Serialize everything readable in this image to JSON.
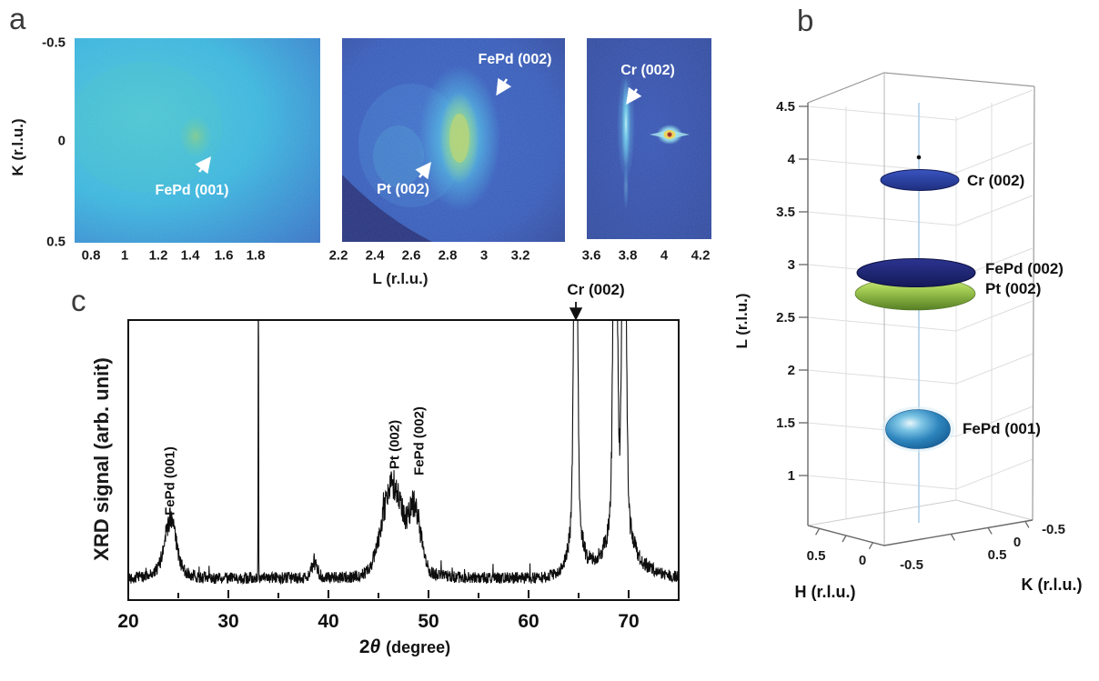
{
  "panel_a": {
    "label": "a",
    "y_axis": {
      "label": "K (r.l.u.)",
      "ticks": [
        "-0.5",
        "0",
        "0.5"
      ]
    },
    "x_axis": {
      "label": "L (r.l.u.)"
    },
    "maps": [
      {
        "x_ticks": [
          "0.8",
          "1",
          "1.2",
          "1.4",
          "1.6",
          "1.8"
        ],
        "annotations": [
          "FePd (001)"
        ]
      },
      {
        "x_ticks": [
          "2.2",
          "2.4",
          "2.6",
          "2.8",
          "3",
          "3.2"
        ],
        "annotations": [
          "FePd (002)",
          "Pt (002)"
        ]
      },
      {
        "x_ticks": [
          "3.6",
          "3.8",
          "4",
          "4.2"
        ],
        "annotations": [
          "Cr (002)"
        ]
      }
    ]
  },
  "panel_b": {
    "label": "b",
    "z_axis": {
      "label": "L (r.l.u.)",
      "ticks": [
        "4.5",
        "4",
        "3.5",
        "3",
        "2.5",
        "2",
        "1.5",
        "1"
      ]
    },
    "h_axis": {
      "label": "H (r.l.u.)",
      "ticks": [
        "0.5",
        "0",
        "-0.5"
      ]
    },
    "k_axis": {
      "label": "K (r.l.u.)",
      "ticks": [
        "0.5",
        "0",
        "-0.5"
      ]
    },
    "features": [
      {
        "label": "Cr (002)",
        "L": 3.8
      },
      {
        "label": "FePd (002)",
        "L": 3.0
      },
      {
        "label": "Pt (002)",
        "L": 2.8
      },
      {
        "label": "FePd (001)",
        "L": 1.5
      }
    ]
  },
  "panel_c": {
    "label": "c",
    "y_axis": {
      "label": "XRD signal (arb. unit)"
    },
    "x_axis": {
      "prefix": "2",
      "theta": "θ",
      "degree": "(degree)"
    }
  },
  "colors": {
    "map_navy": "#1d2a7e",
    "map_cyan": "#2fb2dc",
    "map_blue": "#2b52b4",
    "annotation_white": "#ffffff",
    "curve_black": "#0d0d0d",
    "disk_royal": "#2c3fa5",
    "disk_navy": "#1b2170",
    "disk_green": "#a6cf55",
    "disk_blue": "#2e85bd",
    "hot_spot_red": "#a82818"
  },
  "chart_data": [
    {
      "type": "heatmap",
      "title": "Reciprocal space maps (panel a)",
      "xlabel": "L (r.l.u.)",
      "ylabel": "K (r.l.u.)",
      "ylim": [
        -0.5,
        0.5
      ],
      "y_ticks": [
        -0.5,
        0,
        0.5
      ],
      "maps": [
        {
          "x_range": [
            0.7,
            2.2
          ],
          "x_ticks": [
            0.8,
            1,
            1.2,
            1.4,
            1.6,
            1.8
          ],
          "features": [
            {
              "label": "FePd (001)",
              "L": 1.45,
              "K": 0.0,
              "shape": "broad diffuse cyan ellipse with faint warm core"
            }
          ]
        },
        {
          "x_range": [
            2.2,
            3.3
          ],
          "x_ticks": [
            2.2,
            2.4,
            2.6,
            2.8,
            3,
            3.2
          ],
          "features": [
            {
              "label": "FePd (002)",
              "L": 2.86,
              "K": 0.0,
              "shape": "vertically elongated bright blob with yellow-green core"
            },
            {
              "label": "Pt (002)",
              "L": 2.5,
              "K": 0.0,
              "shape": "faint diffuse glow"
            }
          ]
        },
        {
          "x_range": [
            3.55,
            4.25
          ],
          "x_ticks": [
            3.6,
            3.8,
            4,
            4.2
          ],
          "features": [
            {
              "label": "Cr (002)",
              "L": 3.77,
              "K": 0.0,
              "shape": "narrow vertical cyan streak"
            },
            {
              "label": "",
              "L": 4.0,
              "K": 0.0,
              "shape": "sharp intense substrate spot with red center"
            }
          ]
        }
      ]
    },
    {
      "type": "scatter",
      "subtype": "3d-intensity-isosurfaces",
      "zlabel": "L (r.l.u.)",
      "xlabel": "H (r.l.u.)",
      "ylabel": "K (r.l.u.)",
      "zlim": [
        0.5,
        4.5
      ],
      "z_ticks": [
        4.5,
        4,
        3.5,
        3,
        2.5,
        2,
        1.5,
        1
      ],
      "h_ticks": [
        0.5,
        0,
        -0.5
      ],
      "k_ticks": [
        0.5,
        0,
        -0.5
      ],
      "features": [
        {
          "label": "Cr (002)",
          "H": 0,
          "K": 0,
          "L": 3.8,
          "shape": "thin flat royal-blue disk"
        },
        {
          "label": "",
          "H": 0,
          "K": 0,
          "L": 4.05,
          "shape": "small black dot"
        },
        {
          "label": "FePd (002)",
          "H": 0,
          "K": 0,
          "L": 3.0,
          "shape": "wide dark-navy disk"
        },
        {
          "label": "Pt (002)",
          "H": 0,
          "K": 0,
          "L": 2.8,
          "shape": "wide yellow-green disk"
        },
        {
          "label": "FePd (001)",
          "H": 0,
          "K": 0,
          "L": 1.5,
          "shape": "glossy blue ellipsoid"
        }
      ]
    },
    {
      "type": "line",
      "xlabel": "2θ (degree)",
      "ylabel": "XRD signal (arb. unit)",
      "xlim": [
        20,
        75
      ],
      "x_ticks": [
        20,
        30,
        40,
        50,
        60,
        70
      ],
      "minor_x_ticks": [
        25,
        35,
        45,
        55,
        65,
        75
      ],
      "baseline": 0.042,
      "noise_amplitude": 0.026,
      "clipped_at_top": true,
      "peaks": [
        {
          "label": "FePd (001)",
          "center": 24.2,
          "height": 0.17,
          "sigma": 0.55
        },
        {
          "label": "Pt (002)",
          "center": 46.4,
          "height": 0.3,
          "sigma": 1.0
        },
        {
          "label": "FePd (002)",
          "center": 48.65,
          "height": 0.21,
          "sigma": 0.55
        },
        {
          "label": "Cr (002)",
          "center": 64.7,
          "height": 1.7,
          "sigma": 0.16
        },
        {
          "label": "",
          "center": 33.0,
          "height": 1.4,
          "sigma": 0.02
        },
        {
          "label": "",
          "center": 38.6,
          "height": 0.05,
          "sigma": 0.35
        },
        {
          "label": "",
          "center": 68.65,
          "height": 1.6,
          "sigma": 0.18
        },
        {
          "label": "",
          "center": 69.55,
          "height": 1.6,
          "sigma": 0.18
        },
        {
          "label": "",
          "center": 64.7,
          "height": 0.22,
          "sigma": 0.5
        },
        {
          "label": "",
          "center": 64.7,
          "height": 0.05,
          "sigma": 1.3
        },
        {
          "label": "",
          "center": 69.1,
          "height": 0.26,
          "sigma": 0.8
        },
        {
          "label": "",
          "center": 69.1,
          "height": 0.1,
          "sigma": 2.2
        },
        {
          "label": "",
          "center": 24.2,
          "height": 0.04,
          "sigma": 1.3
        },
        {
          "label": "",
          "center": 47.3,
          "height": 0.05,
          "sigma": 2.2
        }
      ]
    }
  ]
}
